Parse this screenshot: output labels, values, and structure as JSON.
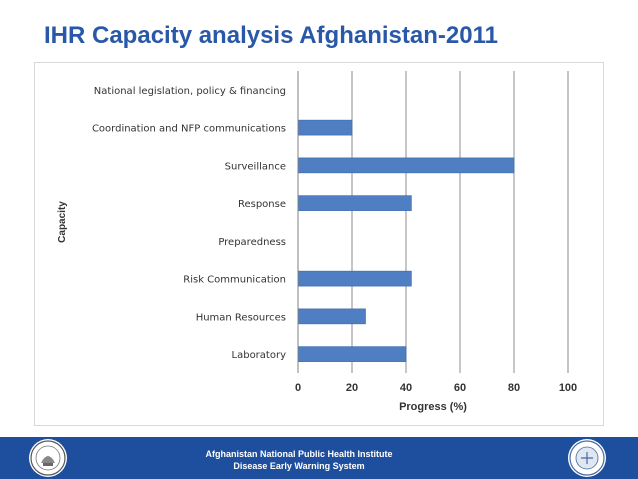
{
  "slide": {
    "title": "IHR Capacity analysis Afghanistan-2011"
  },
  "footer": {
    "line1": "Afghanistan National Public Health Institute",
    "line2": "Disease Early Warning System",
    "logo_left_icon": "ministry-seal-icon",
    "logo_right_icon": "institute-emblem-icon"
  },
  "colors": {
    "title": "#2a58a8",
    "bar": "#4f7fc2",
    "footer_bg": "#1e4f9e"
  },
  "chart_data": {
    "type": "bar",
    "orientation": "horizontal",
    "categories": [
      "National legislation, policy & financing",
      "Coordination and NFP communications",
      "Surveillance",
      "Response",
      "Preparedness",
      "Risk Communication",
      "Human Resources",
      "Laboratory"
    ],
    "values": [
      0,
      20,
      80,
      42,
      0,
      42,
      25,
      40
    ],
    "xlabel": "Progress (%)",
    "ylabel": "Capacity",
    "xlim": [
      0,
      100
    ],
    "xticks": [
      0,
      20,
      40,
      60,
      80,
      100
    ],
    "grid": "vertical",
    "legend": "none"
  }
}
